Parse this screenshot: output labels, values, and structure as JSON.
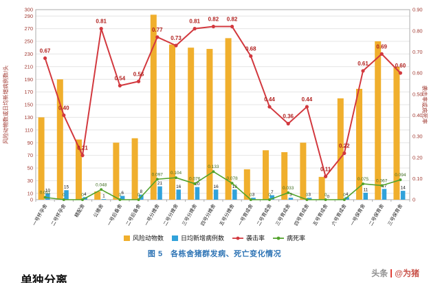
{
  "page": {
    "caption": "图 5　各栋舍猪群发病、死亡变化情况",
    "partial_heading": "单独分离",
    "watermark": {
      "brand": "头条",
      "handle": "@为猪"
    }
  },
  "chart_data": {
    "type": "bar",
    "subtype": "combo-bar-line-dual-axis",
    "title": "图 5 各栋舍猪群发病、死亡变化情况",
    "xlabel": "",
    "ylabel_left": "风险动物数或日均新增病例数/头",
    "ylabel_right": "袭击率或病死率",
    "left_axis_max": 300,
    "left_axis_ticks": [
      300,
      290,
      270,
      250,
      230,
      210,
      190,
      170,
      150,
      130,
      110,
      90,
      70,
      50,
      30,
      10,
      0
    ],
    "right_axis_max": 0.9,
    "right_axis_ticks": [
      "0.90",
      "0.80",
      "0.70",
      "0.60",
      "0.50",
      "0.40",
      "0.30",
      "0.20",
      "0.10",
      "0"
    ],
    "grid": "horizontal",
    "legend_position": "bottom",
    "categories": [
      "一号怀孕舍",
      "二号怀孕舍",
      "精配舍",
      "公猪舍",
      "一号后备舍",
      "二号后备舍",
      "一号分娩舍",
      "二号分娩舍",
      "三号分娩舍",
      "四号分娩舍",
      "五号分娩舍",
      "一号育成舍",
      "二号育成舍",
      "三号育成舍",
      "四号育成舍",
      "五号育成舍",
      "六号育成舍",
      "一号保育舍",
      "二号保育舍",
      "三号保育舍"
    ],
    "series": [
      {
        "name": "风险动物数",
        "data_name": "risk-animal-bars",
        "type": "bar",
        "axis": "left",
        "color": "#F0AF2D",
        "show_labels": false,
        "values": [
          130,
          190,
          95,
          13,
          90,
          97,
          292,
          245,
          240,
          238,
          255,
          48,
          78,
          75,
          90,
          36,
          160,
          175,
          250,
          210
        ]
      },
      {
        "name": "日均新增病例数",
        "data_name": "new-case-bars",
        "type": "bar",
        "axis": "left",
        "color": "#31A2DA",
        "show_labels": true,
        "label_color": "#111111",
        "values": [
          10,
          15,
          4,
          1,
          6,
          8,
          21,
          16,
          20,
          16,
          16,
          3,
          7,
          3,
          3,
          0,
          4,
          11,
          17,
          14
        ]
      },
      {
        "name": "袭击率",
        "data_name": "attack-rate-line",
        "type": "line",
        "axis": "right",
        "color": "#D2383E",
        "label_color": "#B01F1D",
        "label_bold": true,
        "label_size": 8,
        "label_dy": 8,
        "width": 2,
        "marker_r": 2.6,
        "labels": [
          "0.67",
          "0.40",
          "0.21",
          "0.81",
          "0.54",
          "0.56",
          "0.77",
          "0.73",
          "0.81",
          "0.82",
          "0.82",
          "0.68",
          "0.44",
          "0.36",
          "0.44",
          "0.11",
          "0.22",
          "0.61",
          "0.69",
          "0.60"
        ]
      },
      {
        "name": "病死率",
        "data_name": "fatality-rate-line",
        "type": "line",
        "axis": "right",
        "color": "#52A22C",
        "label_color": "#3E6B1F",
        "label_bold": false,
        "label_size": 6.5,
        "label_dy": 5,
        "width": 1.6,
        "marker_r": 2,
        "labels": [
          "0.011",
          "0",
          "0",
          "0.048",
          "0",
          "0",
          "0.097",
          "0.104",
          "0.076",
          "0.133",
          "0.078",
          "0",
          "0",
          "0.033",
          "0",
          "0",
          "0",
          "0.075",
          "0.067",
          "0.094"
        ]
      }
    ],
    "colors": {
      "axis_text": "#A03931",
      "grid": "#E4E4E4",
      "border": "#ABABAB",
      "caption": "#2E74B5"
    }
  }
}
